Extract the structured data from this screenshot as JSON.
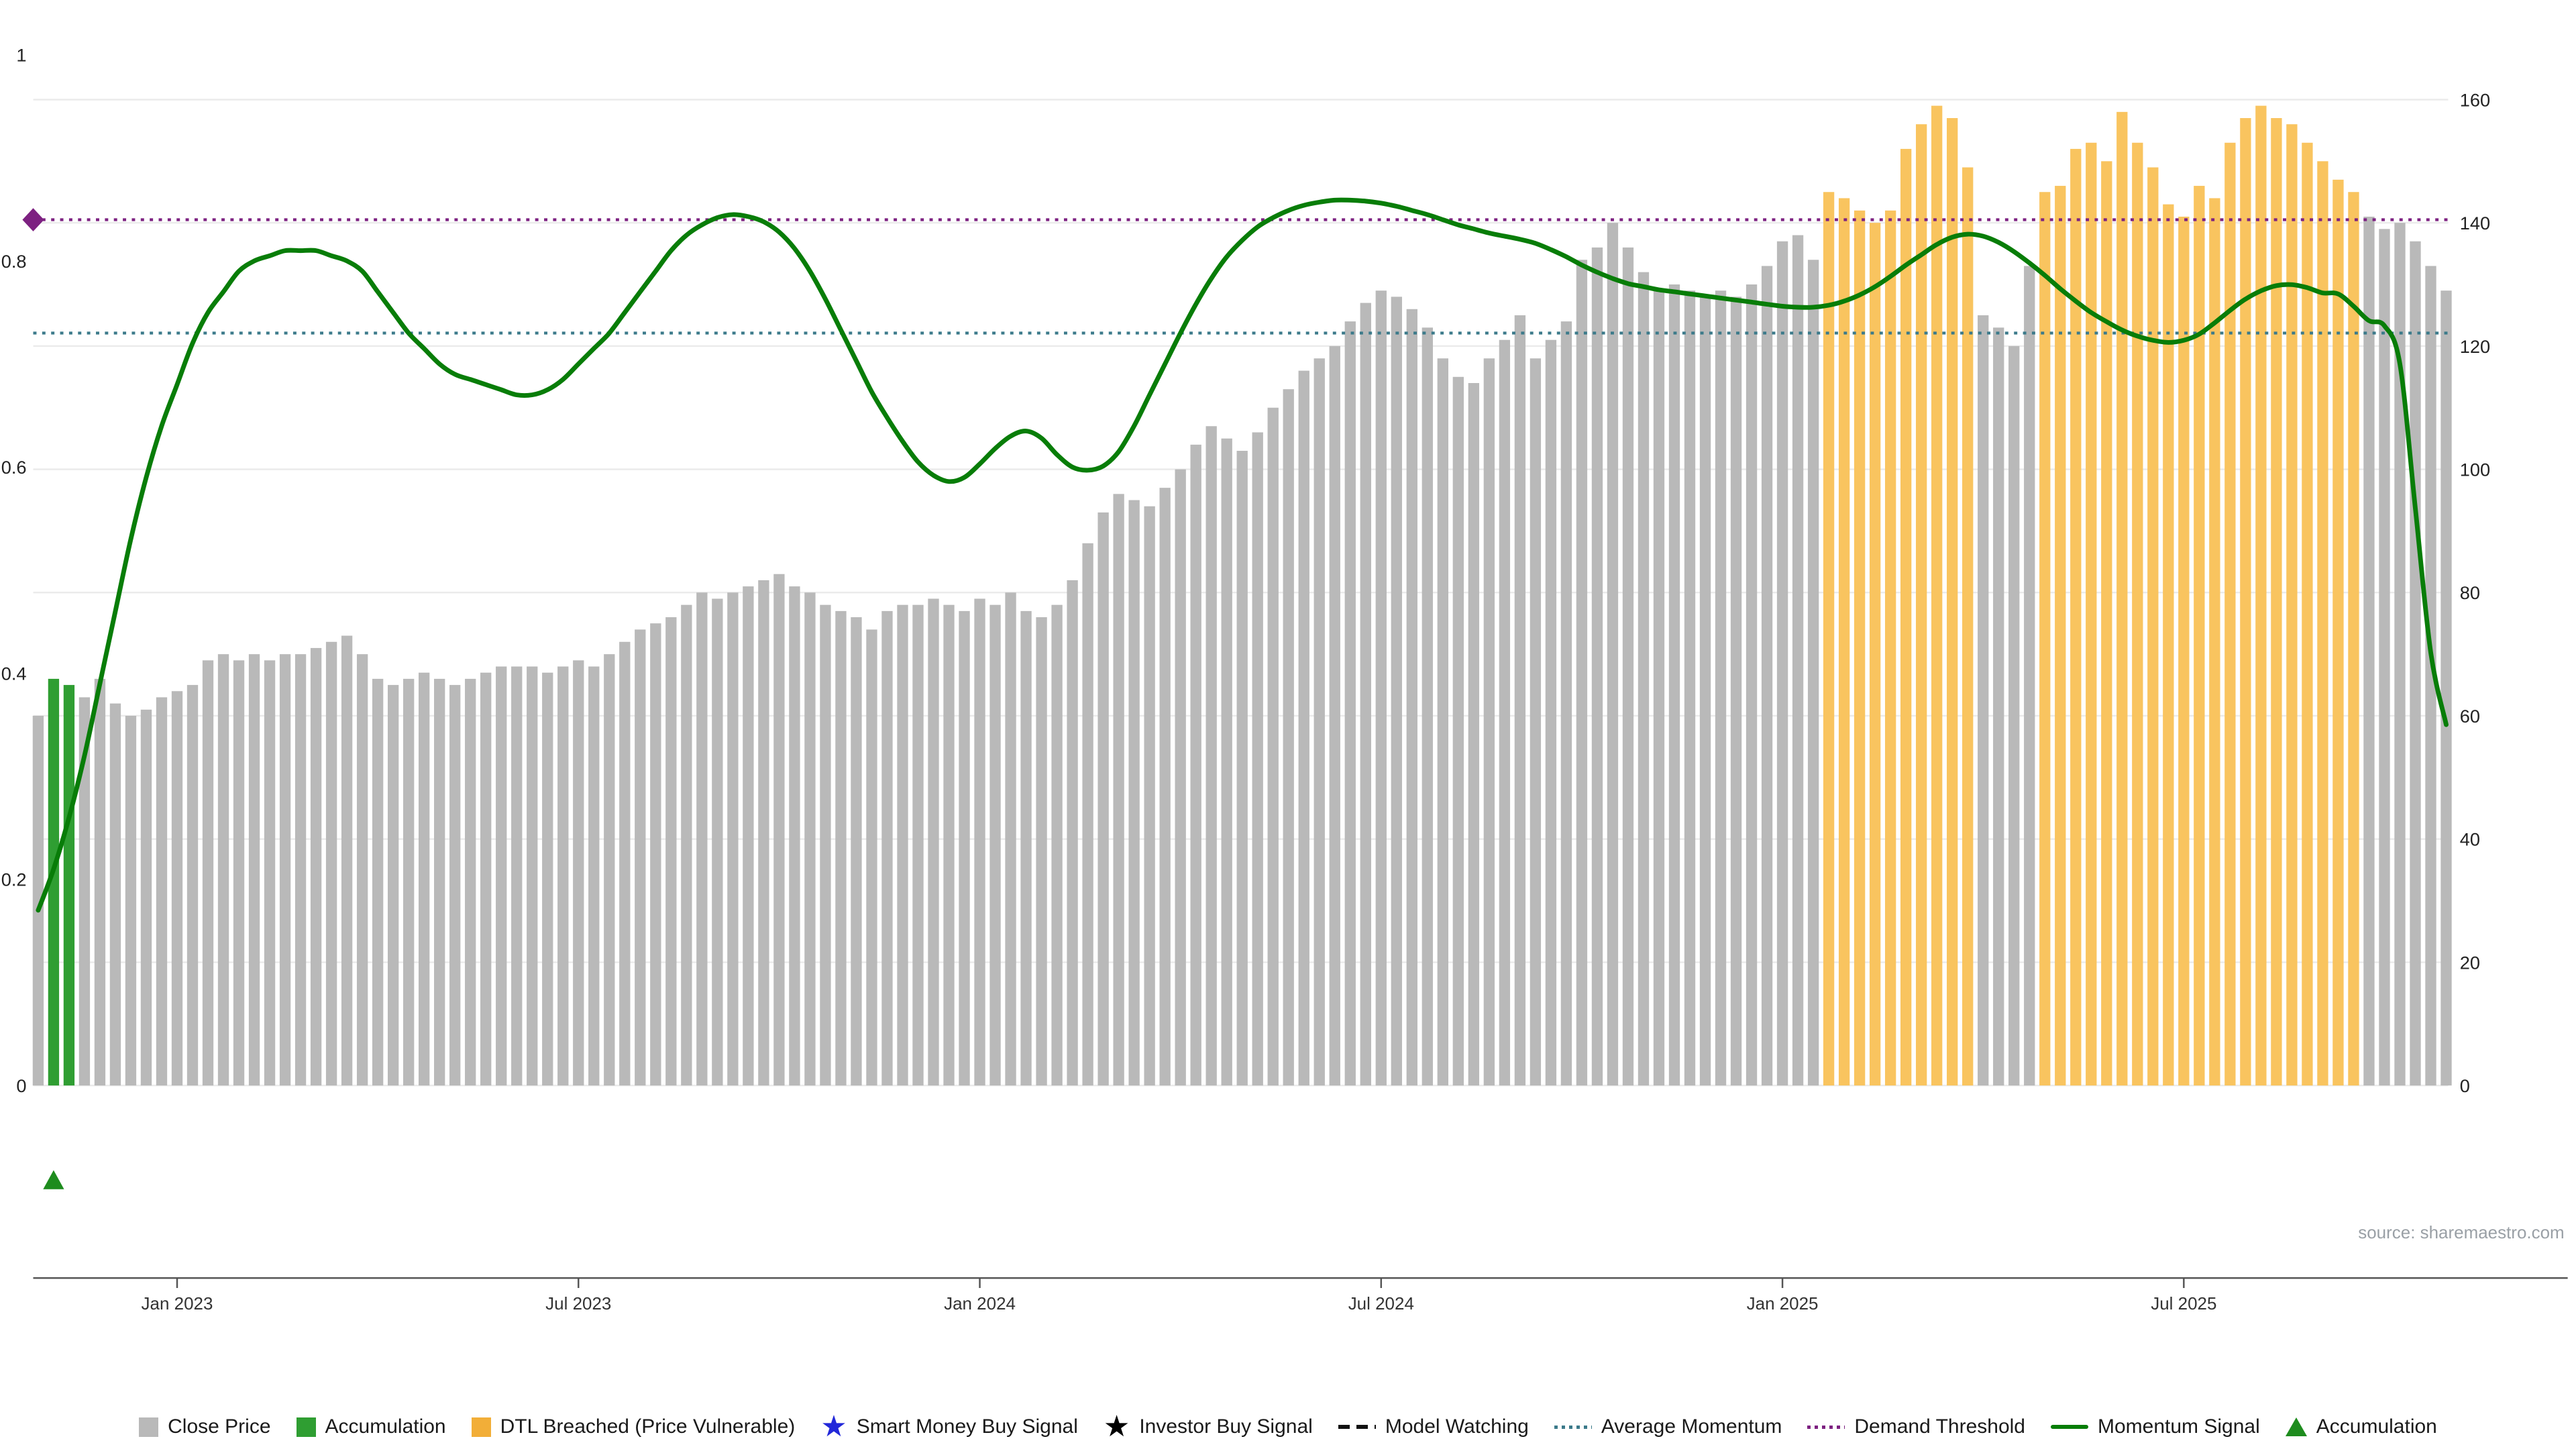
{
  "source": {
    "text": "source: sharemaestro.com"
  },
  "chart_data": {
    "type": "bar",
    "title": "",
    "x_ticks": {
      "indices": [
        9,
        35,
        61,
        87,
        113,
        139
      ],
      "labels": [
        "Jan 2023",
        "Jul 2023",
        "Jan 2024",
        "Jul 2024",
        "Jan 2025",
        "Jul 2025"
      ]
    },
    "left_axis": {
      "range": [
        0,
        1
      ],
      "ticks": [
        0,
        0.2,
        0.4,
        0.6,
        0.8,
        1
      ]
    },
    "right_axis": {
      "range": [
        0,
        160
      ],
      "ticks": [
        0,
        20,
        40,
        60,
        80,
        100,
        120,
        140,
        160
      ]
    },
    "colors": {
      "close": "#b9b9b9",
      "accumulation": "#2f9e32",
      "dtl": "#f9c45f"
    },
    "series": [
      {
        "name": "Close Price",
        "type": "bar",
        "axis": "right",
        "accumulation_indices": [
          1,
          2
        ],
        "dtl_ranges": [
          [
            116,
            125
          ],
          [
            130,
            150
          ]
        ],
        "values": [
          60,
          66,
          65,
          63,
          66,
          62,
          60,
          61,
          63,
          64,
          65,
          69,
          70,
          69,
          70,
          69,
          70,
          70,
          71,
          72,
          73,
          70,
          66,
          65,
          66,
          67,
          66,
          65,
          66,
          67,
          68,
          68,
          68,
          67,
          68,
          69,
          68,
          70,
          72,
          74,
          75,
          76,
          78,
          80,
          79,
          80,
          81,
          82,
          83,
          81,
          80,
          78,
          77,
          76,
          74,
          77,
          78,
          78,
          79,
          78,
          77,
          79,
          78,
          80,
          77,
          76,
          78,
          82,
          88,
          93,
          96,
          95,
          94,
          97,
          100,
          104,
          107,
          105,
          103,
          106,
          110,
          113,
          116,
          118,
          120,
          124,
          127,
          129,
          128,
          126,
          123,
          118,
          115,
          114,
          118,
          121,
          125,
          118,
          121,
          124,
          134,
          136,
          140,
          136,
          132,
          129,
          130,
          129,
          128,
          129,
          128,
          130,
          133,
          137,
          138,
          134,
          145,
          144,
          142,
          140,
          142,
          152,
          156,
          159,
          157,
          149,
          125,
          123,
          120,
          133,
          145,
          146,
          152,
          153,
          150,
          158,
          153,
          149,
          143,
          141,
          146,
          144,
          153,
          157,
          159,
          157,
          156,
          153,
          150,
          147,
          145,
          141,
          139,
          140,
          137,
          133,
          129
        ]
      },
      {
        "name": "Momentum Signal",
        "type": "line",
        "axis": "left",
        "color": "#087d08",
        "values": [
          0.17,
          0.21,
          0.26,
          0.32,
          0.39,
          0.46,
          0.53,
          0.59,
          0.64,
          0.68,
          0.72,
          0.75,
          0.77,
          0.79,
          0.8,
          0.805,
          0.81,
          0.81,
          0.81,
          0.805,
          0.8,
          0.79,
          0.77,
          0.75,
          0.73,
          0.715,
          0.7,
          0.69,
          0.685,
          0.68,
          0.675,
          0.67,
          0.67,
          0.675,
          0.685,
          0.7,
          0.715,
          0.73,
          0.75,
          0.77,
          0.79,
          0.81,
          0.825,
          0.835,
          0.842,
          0.845,
          0.843,
          0.838,
          0.828,
          0.812,
          0.79,
          0.763,
          0.733,
          0.703,
          0.673,
          0.648,
          0.625,
          0.605,
          0.592,
          0.586,
          0.59,
          0.603,
          0.618,
          0.63,
          0.635,
          0.628,
          0.612,
          0.6,
          0.597,
          0.601,
          0.615,
          0.64,
          0.67,
          0.7,
          0.73,
          0.758,
          0.783,
          0.804,
          0.82,
          0.833,
          0.842,
          0.849,
          0.854,
          0.857,
          0.859,
          0.859,
          0.858,
          0.856,
          0.853,
          0.849,
          0.845,
          0.84,
          0.835,
          0.831,
          0.827,
          0.824,
          0.821,
          0.817,
          0.811,
          0.804,
          0.796,
          0.789,
          0.783,
          0.778,
          0.775,
          0.772,
          0.77,
          0.768,
          0.766,
          0.764,
          0.762,
          0.76,
          0.758,
          0.756,
          0.755,
          0.755,
          0.757,
          0.761,
          0.767,
          0.775,
          0.785,
          0.796,
          0.806,
          0.816,
          0.823,
          0.826,
          0.824,
          0.818,
          0.809,
          0.798,
          0.786,
          0.773,
          0.761,
          0.75,
          0.741,
          0.733,
          0.727,
          0.723,
          0.721,
          0.723,
          0.729,
          0.74,
          0.752,
          0.763,
          0.771,
          0.776,
          0.777,
          0.774,
          0.769,
          0.768,
          0.756,
          0.742,
          0.737,
          0.7,
          0.56,
          0.42,
          0.35
        ]
      }
    ],
    "reference_lines": [
      {
        "name": "Average Momentum",
        "axis": "left",
        "value": 0.73,
        "style": "dotted",
        "color": "#3b7a8a"
      },
      {
        "name": "Demand Threshold",
        "axis": "left",
        "value": 0.84,
        "style": "dotted",
        "color": "#7d2181"
      }
    ],
    "markers": [
      {
        "name": "demand-threshold-marker",
        "shape": "diamond",
        "color": "#7d2181",
        "value": 0.84
      },
      {
        "name": "accumulation-marker",
        "shape": "triangle-up",
        "color": "#1e8c1e",
        "at_index": 1
      }
    ]
  },
  "legend": {
    "items": [
      {
        "label": "Close Price",
        "swatch": "square",
        "color": "#b9b9b9",
        "icon": "close-price-swatch"
      },
      {
        "label": "Accumulation",
        "swatch": "square",
        "color": "#2f9e32",
        "icon": "accumulation-swatch"
      },
      {
        "label": "DTL Breached (Price Vulnerable)",
        "swatch": "square",
        "color": "#f2ae38",
        "icon": "dtl-breached-swatch"
      },
      {
        "label": "Smart Money Buy Signal",
        "swatch": "star",
        "color": "#2228d9",
        "icon": "blue-star-icon"
      },
      {
        "label": "Investor Buy Signal",
        "swatch": "star",
        "color": "#000000",
        "icon": "black-star-icon"
      },
      {
        "label": "Model Watching",
        "swatch": "dashes",
        "color": "#111111",
        "icon": "dashed-line-icon"
      },
      {
        "label": "Average Momentum",
        "swatch": "dotted",
        "color": "#3b7a8a",
        "icon": "dotted-teal-line-icon"
      },
      {
        "label": "Demand Threshold",
        "swatch": "dotted",
        "color": "#7d2181",
        "icon": "dotted-purple-line-icon"
      },
      {
        "label": "Momentum Signal",
        "swatch": "line",
        "color": "#087d08",
        "icon": "momentum-line-icon"
      },
      {
        "label": "Accumulation",
        "swatch": "triangle",
        "color": "#1e8c1e",
        "icon": "accumulation-triangle-icon"
      }
    ]
  }
}
